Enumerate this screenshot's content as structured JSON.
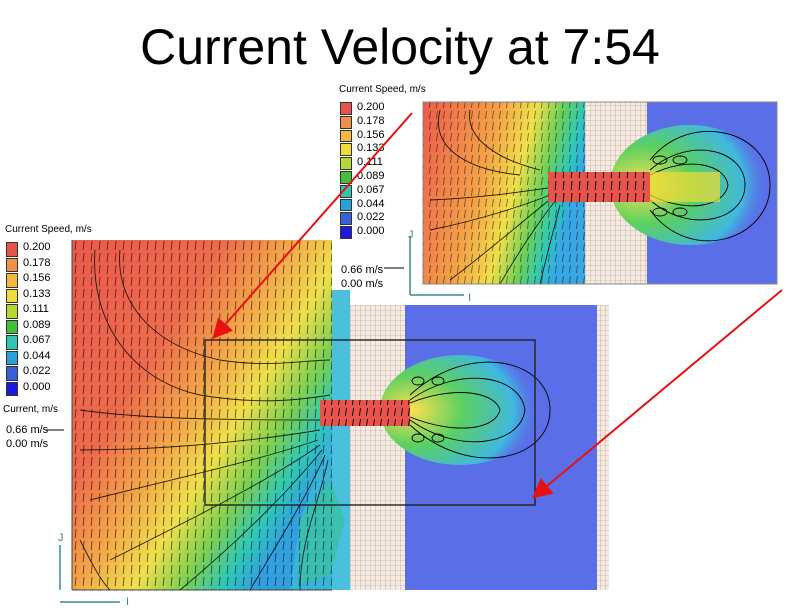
{
  "title": "Current Velocity at 7:54",
  "legend": {
    "speed_title": "Current Speed, m/s",
    "levels": [
      "0.200",
      "0.178",
      "0.156",
      "0.133",
      "0.111",
      "0.089",
      "0.067",
      "0.044",
      "0.022",
      "0.000"
    ],
    "colors": [
      "#e8544c",
      "#f0904a",
      "#f5b83c",
      "#f0dc36",
      "#b6d832",
      "#44c038",
      "#2ec6b0",
      "#28a0d8",
      "#3860d8",
      "#1a1adc"
    ]
  },
  "vector_legend": {
    "title": "Current, m/s",
    "max_label": "0.66 m/s",
    "min_label": "0.00 m/s"
  },
  "axes": {
    "j": "J",
    "i": "I"
  }
}
